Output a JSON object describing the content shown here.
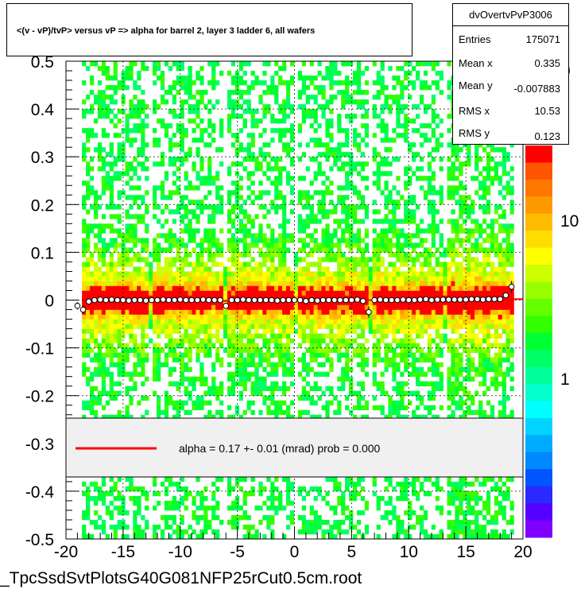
{
  "title": "<(v - vP)/tvP> versus   vP => alpha for barrel 2, layer 3 ladder 6, all wafers",
  "stats": {
    "name": "dvOvertvPvP3006",
    "rows": [
      {
        "label": "Entries",
        "value": "175071"
      },
      {
        "label": "Mean x",
        "value": "0.335"
      },
      {
        "label": "Mean y",
        "value": "-0.007883"
      },
      {
        "label": "RMS x",
        "value": "10.53"
      },
      {
        "label": "RMS y",
        "value": "0.123"
      }
    ]
  },
  "legend": {
    "text": "alpha =     0.17 +-  0.01 (mrad) prob = 0.000",
    "line_color": "#ff0000"
  },
  "footer": "_TpcSsdSvtPlotsG40G081NFP25rCut0.5cm.root",
  "chart_data": {
    "type": "heatmap",
    "title": "<(v - vP)/tvP> versus   vP => alpha for barrel 2, layer 3 ladder 6, all wafers",
    "xlim": [
      -20,
      20
    ],
    "ylim": [
      -0.5,
      0.5
    ],
    "x_ticks": [
      "-20",
      "-15",
      "-10",
      "-5",
      "0",
      "5",
      "10",
      "15",
      "20"
    ],
    "y_ticks": [
      "-0.5",
      "-0.4",
      "-0.3",
      "-0.2",
      "-0.1",
      "0",
      "0.1",
      "0.2",
      "0.3",
      "0.4",
      "0.5"
    ],
    "z_scale": "log",
    "z_ticks": [
      "1",
      "10"
    ],
    "z_tick_partial": "0",
    "grid": true,
    "fit_line": {
      "y_at_xmin": -0.004,
      "y_at_xmax": 0.002
    },
    "profile_points": [
      {
        "x": -19.0,
        "y": -0.012,
        "err": 0.008
      },
      {
        "x": -18.5,
        "y": -0.02,
        "err": 0.008
      },
      {
        "x": -18.0,
        "y": -0.003,
        "err": 0.004
      },
      {
        "x": -17.5,
        "y": 0.0,
        "err": 0.003
      },
      {
        "x": -17.0,
        "y": 0.001,
        "err": 0.003
      },
      {
        "x": -16.5,
        "y": 0.0,
        "err": 0.003
      },
      {
        "x": -16.0,
        "y": 0.001,
        "err": 0.003
      },
      {
        "x": -15.5,
        "y": 0.0,
        "err": 0.003
      },
      {
        "x": -15.0,
        "y": 0.0,
        "err": 0.003
      },
      {
        "x": -14.5,
        "y": -0.001,
        "err": 0.003
      },
      {
        "x": -14.0,
        "y": 0.0,
        "err": 0.003
      },
      {
        "x": -13.5,
        "y": 0.0,
        "err": 0.003
      },
      {
        "x": -13.0,
        "y": -0.001,
        "err": 0.003
      },
      {
        "x": -12.5,
        "y": 0.0,
        "err": 0.003
      },
      {
        "x": -12.0,
        "y": 0.0,
        "err": 0.003
      },
      {
        "x": -11.5,
        "y": 0.001,
        "err": 0.003
      },
      {
        "x": -11.0,
        "y": 0.0,
        "err": 0.003
      },
      {
        "x": -10.5,
        "y": 0.0,
        "err": 0.003
      },
      {
        "x": -10.0,
        "y": 0.001,
        "err": 0.003
      },
      {
        "x": -9.5,
        "y": 0.0,
        "err": 0.003
      },
      {
        "x": -9.0,
        "y": 0.0,
        "err": 0.003
      },
      {
        "x": -8.5,
        "y": 0.0,
        "err": 0.003
      },
      {
        "x": -8.0,
        "y": 0.001,
        "err": 0.003
      },
      {
        "x": -7.5,
        "y": 0.0,
        "err": 0.003
      },
      {
        "x": -7.0,
        "y": 0.0,
        "err": 0.003
      },
      {
        "x": -6.5,
        "y": 0.0,
        "err": 0.003
      },
      {
        "x": -6.0,
        "y": -0.012,
        "err": 0.006
      },
      {
        "x": -5.5,
        "y": 0.0,
        "err": 0.003
      },
      {
        "x": -5.0,
        "y": 0.0,
        "err": 0.003
      },
      {
        "x": -4.5,
        "y": 0.001,
        "err": 0.003
      },
      {
        "x": -4.0,
        "y": 0.0,
        "err": 0.003
      },
      {
        "x": -3.5,
        "y": 0.0,
        "err": 0.003
      },
      {
        "x": -3.0,
        "y": 0.0,
        "err": 0.003
      },
      {
        "x": -2.5,
        "y": 0.0,
        "err": 0.003
      },
      {
        "x": -2.0,
        "y": 0.0,
        "err": 0.003
      },
      {
        "x": -1.5,
        "y": -0.001,
        "err": 0.003
      },
      {
        "x": -1.0,
        "y": 0.0,
        "err": 0.003
      },
      {
        "x": -0.5,
        "y": 0.0,
        "err": 0.003
      },
      {
        "x": 0.0,
        "y": 0.0,
        "err": 0.003
      },
      {
        "x": 0.5,
        "y": 0.0,
        "err": 0.003
      },
      {
        "x": 1.0,
        "y": -0.002,
        "err": 0.003
      },
      {
        "x": 1.5,
        "y": 0.0,
        "err": 0.003
      },
      {
        "x": 2.0,
        "y": -0.001,
        "err": 0.003
      },
      {
        "x": 2.5,
        "y": 0.0,
        "err": 0.003
      },
      {
        "x": 3.0,
        "y": 0.0,
        "err": 0.003
      },
      {
        "x": 3.5,
        "y": 0.0,
        "err": 0.003
      },
      {
        "x": 4.0,
        "y": 0.0,
        "err": 0.003
      },
      {
        "x": 4.5,
        "y": 0.0,
        "err": 0.003
      },
      {
        "x": 5.0,
        "y": 0.0,
        "err": 0.003
      },
      {
        "x": 5.5,
        "y": 0.001,
        "err": 0.003
      },
      {
        "x": 6.0,
        "y": -0.002,
        "err": 0.003
      },
      {
        "x": 6.5,
        "y": -0.025,
        "err": 0.012
      },
      {
        "x": 7.0,
        "y": 0.0,
        "err": 0.003
      },
      {
        "x": 7.5,
        "y": 0.001,
        "err": 0.003
      },
      {
        "x": 8.0,
        "y": 0.0,
        "err": 0.003
      },
      {
        "x": 8.5,
        "y": 0.0,
        "err": 0.003
      },
      {
        "x": 9.0,
        "y": 0.0,
        "err": 0.003
      },
      {
        "x": 9.5,
        "y": 0.001,
        "err": 0.003
      },
      {
        "x": 10.0,
        "y": 0.0,
        "err": 0.003
      },
      {
        "x": 10.5,
        "y": 0.0,
        "err": 0.003
      },
      {
        "x": 11.0,
        "y": 0.001,
        "err": 0.003
      },
      {
        "x": 11.5,
        "y": 0.002,
        "err": 0.003
      },
      {
        "x": 12.0,
        "y": 0.0,
        "err": 0.003
      },
      {
        "x": 12.5,
        "y": 0.001,
        "err": 0.003
      },
      {
        "x": 13.0,
        "y": 0.001,
        "err": 0.003
      },
      {
        "x": 13.5,
        "y": 0.001,
        "err": 0.003
      },
      {
        "x": 14.0,
        "y": 0.001,
        "err": 0.003
      },
      {
        "x": 14.5,
        "y": 0.001,
        "err": 0.003
      },
      {
        "x": 15.0,
        "y": 0.001,
        "err": 0.003
      },
      {
        "x": 15.5,
        "y": 0.002,
        "err": 0.003
      },
      {
        "x": 16.0,
        "y": 0.002,
        "err": 0.003
      },
      {
        "x": 16.5,
        "y": 0.001,
        "err": 0.003
      },
      {
        "x": 17.0,
        "y": 0.002,
        "err": 0.003
      },
      {
        "x": 17.5,
        "y": 0.002,
        "err": 0.003
      },
      {
        "x": 18.0,
        "y": 0.002,
        "err": 0.003
      },
      {
        "x": 18.5,
        "y": 0.01,
        "err": 0.006
      },
      {
        "x": 19.0,
        "y": 0.028,
        "err": 0.012
      }
    ]
  },
  "colors": {
    "palette": [
      "#8000ff",
      "#5500ff",
      "#2a2aff",
      "#0055ff",
      "#0088ff",
      "#00aaff",
      "#00d4ff",
      "#00ffff",
      "#00ffcc",
      "#00ff99",
      "#00ff66",
      "#00ff33",
      "#33ff00",
      "#66ff00",
      "#99ff00",
      "#ccff00",
      "#ffff00",
      "#ffdd00",
      "#ffbb00",
      "#ff9900",
      "#ff7700",
      "#ff5500",
      "#ff0000"
    ],
    "profile_marker": "#ffffff",
    "fit_line": "#ff0000"
  }
}
